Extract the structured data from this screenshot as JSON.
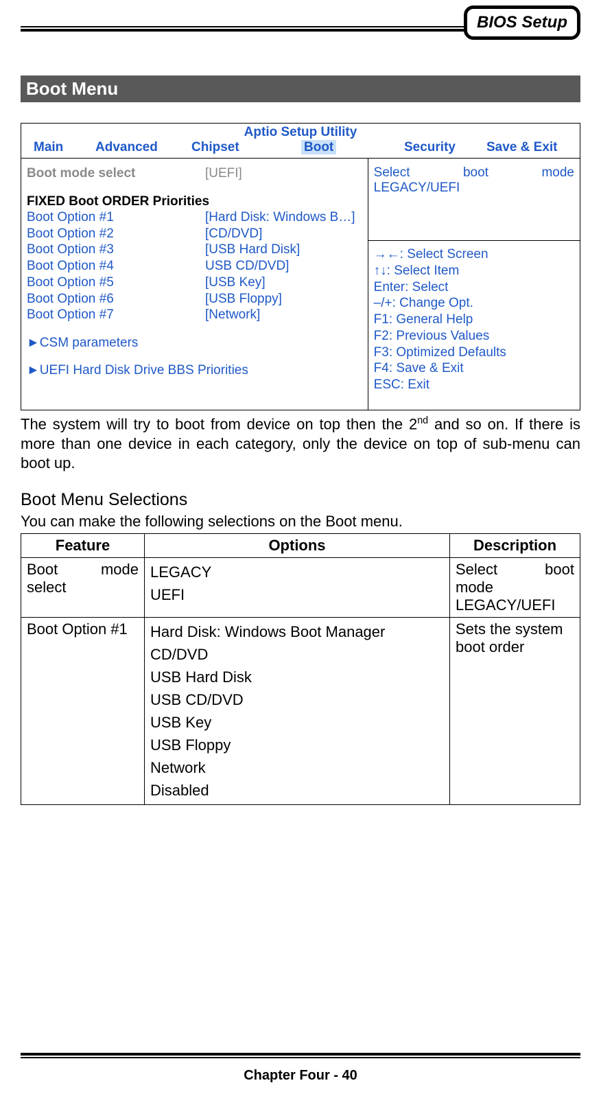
{
  "header": {
    "badge": "BIOS Setup"
  },
  "section_title": "Boot Menu",
  "bios": {
    "utility_title": "Aptio Setup Utility",
    "tabs": {
      "main": "Main",
      "advanced": "Advanced",
      "chipset": "Chipset",
      "boot": "Boot",
      "security": "Security",
      "save_exit": "Save & Exit"
    },
    "boot_mode_label": "Boot mode select",
    "boot_mode_value": "[UEFI]",
    "fixed_order_heading": "FIXED Boot ORDER Priorities",
    "options": [
      {
        "label": "Boot Option #1",
        "value": "[Hard Disk: Windows B…]"
      },
      {
        "label": "Boot Option #2",
        "value": "[CD/DVD]"
      },
      {
        "label": "Boot Option #3",
        "value": "[USB Hard Disk]"
      },
      {
        "label": "Boot Option #4",
        "value": "USB CD/DVD]"
      },
      {
        "label": "Boot Option #5",
        "value": "[USB Key]"
      },
      {
        "label": "Boot Option #6",
        "value": "[USB Floppy]"
      },
      {
        "label": "Boot Option #7",
        "value": "[Network]"
      }
    ],
    "csm": "►CSM parameters",
    "uefi_bbs": "►UEFI Hard Disk Drive BBS Priorities",
    "help_top_l1": "Select boot mode",
    "help_top_l2": "LEGACY/UEFI",
    "help_keys": [
      "→←: Select Screen",
      "↑↓: Select Item",
      "Enter: Select",
      "–/+: Change Opt.",
      "F1: General Help",
      "F2: Previous Values",
      "F3: Optimized Defaults",
      "F4: Save & Exit",
      "ESC: Exit"
    ]
  },
  "description_html": "The system will try to boot from device on top then the 2<sup>nd</sup> and so on. If there is more than one device in each category, only the device on top of sub-menu can boot up.",
  "selections_heading": "Boot Menu Selections",
  "selections_intro": "You can make the following selections on the Boot menu.",
  "table": {
    "headers": {
      "feature": "Feature",
      "options": "Options",
      "description": "Description"
    },
    "rows": [
      {
        "feature_l1": "Boot mode",
        "feature_l2": "select",
        "options": [
          "LEGACY",
          "UEFI"
        ],
        "desc_l1": "Select boot",
        "desc_l2": "mode",
        "desc_l3": "LEGACY/UEFI"
      },
      {
        "feature": "Boot Option #1",
        "options": [
          "Hard Disk: Windows Boot Manager",
          "CD/DVD",
          "USB Hard Disk",
          "USB CD/DVD",
          "USB Key",
          "USB Floppy",
          "Network",
          "Disabled"
        ],
        "desc_l1": "Sets the system",
        "desc_l2": "boot order"
      }
    ]
  },
  "footer": "Chapter Four - 40"
}
